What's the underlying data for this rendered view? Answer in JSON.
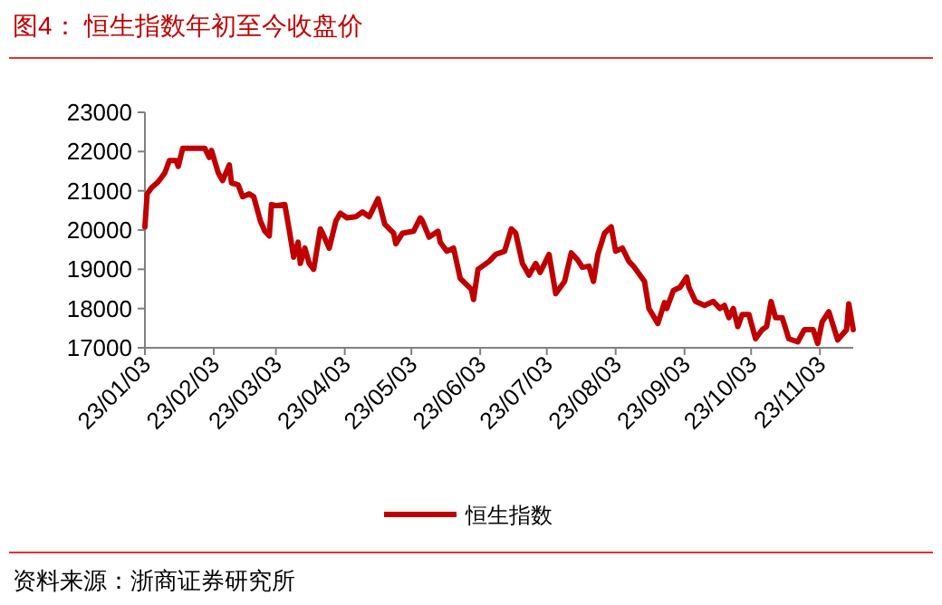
{
  "chart_data": {
    "type": "line",
    "title": "图4：  恒生指数年初至今收盘价",
    "annotations": [
      "资料来源：浙商证券研究所"
    ],
    "x": [
      "--01-03",
      "--01-04",
      "--01-06",
      "--01-09",
      "--01-12",
      "--01-14",
      "--01-17",
      "--01-18",
      "--01-20",
      "--01-30",
      "--02-01",
      "--02-02",
      "--02-05",
      "--02-07",
      "--02-10",
      "--02-11",
      "--02-14",
      "--02-16",
      "--02-19",
      "--02-21",
      "--02-24",
      "--02-26",
      "--02-28",
      "--03-01",
      "--03-03",
      "--03-07",
      "--03-09",
      "--03-11",
      "--03-13",
      "--03-14",
      "--03-16",
      "--03-18",
      "--03-20",
      "--03-23",
      "--03-24",
      "--03-27",
      "--03-30",
      "--04-01",
      "--04-04",
      "--04-08",
      "--04-11",
      "--04-14",
      "--04-18",
      "--04-21",
      "--04-25",
      "--04-26",
      "--04-29",
      "--05-04",
      "--05-07",
      "--05-08",
      "--05-11",
      "--05-15",
      "--05-16",
      "--05-19",
      "--05-22",
      "--05-25",
      "--05-30",
      "--05-31",
      "--06-02",
      "--06-07",
      "--06-10",
      "--06-14",
      "--06-17",
      "--06-19",
      "--06-22",
      "--06-25",
      "--06-28",
      "--06-30",
      "--07-04",
      "--07-07",
      "--07-11",
      "--07-14",
      "--07-17",
      "--07-19",
      "--07-22",
      "--07-24",
      "--07-26",
      "--07-29",
      "--08-01",
      "--08-03",
      "--08-06",
      "--08-09",
      "--08-11",
      "--08-16",
      "--08-18",
      "--08-22",
      "--08-25",
      "--08-26",
      "--08-29",
      "--09-01",
      "--09-04",
      "--09-05",
      "--09-08",
      "--09-12",
      "--09-16",
      "--09-19",
      "--09-21",
      "--09-23",
      "--09-25",
      "--09-27",
      "--09-29",
      "--10-02",
      "--10-05",
      "--10-08",
      "--10-10",
      "--10-12",
      "--10-14",
      "--10-17",
      "--10-20",
      "--10-24",
      "--10-27",
      "--10-31",
      "--11-02",
      "--11-04",
      "--11-07",
      "--11-11",
      "--11-15",
      "--11-16",
      "--11-18"
    ],
    "series": [
      {
        "name": "恒生指数",
        "color": "#c00000",
        "values": [
          20080,
          20920,
          21080,
          21230,
          21460,
          21770,
          21770,
          21620,
          22080,
          22080,
          21850,
          22030,
          21460,
          21260,
          21660,
          21200,
          21150,
          20850,
          20920,
          20850,
          20230,
          19970,
          19850,
          20650,
          20620,
          20650,
          20000,
          19310,
          19690,
          19150,
          19540,
          19150,
          19000,
          20030,
          19920,
          19540,
          20230,
          20430,
          20310,
          20340,
          20460,
          20340,
          20800,
          20150,
          19920,
          19650,
          19920,
          19970,
          20310,
          20230,
          19820,
          19970,
          19690,
          19460,
          19540,
          18770,
          18490,
          18230,
          19000,
          19200,
          19380,
          19460,
          20030,
          19920,
          19150,
          18850,
          19150,
          18920,
          19380,
          18380,
          18690,
          19420,
          19230,
          19050,
          19080,
          18690,
          19380,
          19920,
          20080,
          19460,
          19540,
          19200,
          19080,
          18690,
          18000,
          17620,
          18150,
          18000,
          18460,
          18540,
          18800,
          18540,
          18180,
          18080,
          18180,
          18000,
          18080,
          17770,
          18000,
          17540,
          17850,
          17850,
          17230,
          17460,
          17540,
          18180,
          17770,
          17770,
          17230,
          17150,
          17460,
          17460,
          17110,
          17660,
          17920,
          17200,
          17460,
          18120,
          17460
        ]
      }
    ],
    "xlim": [
      "--01-03",
      "--11-18"
    ],
    "xticks": [
      {
        "value": "--01-03",
        "label": "23/01/03"
      },
      {
        "value": "--02-03",
        "label": "23/02/03"
      },
      {
        "value": "--03-03",
        "label": "23/03/03"
      },
      {
        "value": "--04-03",
        "label": "23/04/03"
      },
      {
        "value": "--05-03",
        "label": "23/05/03"
      },
      {
        "value": "--06-03",
        "label": "23/06/03"
      },
      {
        "value": "--07-03",
        "label": "23/07/03"
      },
      {
        "value": "--08-03",
        "label": "23/08/03"
      },
      {
        "value": "--09-03",
        "label": "23/09/03"
      },
      {
        "value": "--10-03",
        "label": "23/10/03"
      },
      {
        "value": "--11-03",
        "label": "23/11/03"
      }
    ],
    "ylim": [
      17000,
      23000
    ],
    "yticks": [
      17000,
      18000,
      19000,
      20000,
      21000,
      22000,
      23000
    ],
    "legend": "bottom",
    "grid": false
  }
}
